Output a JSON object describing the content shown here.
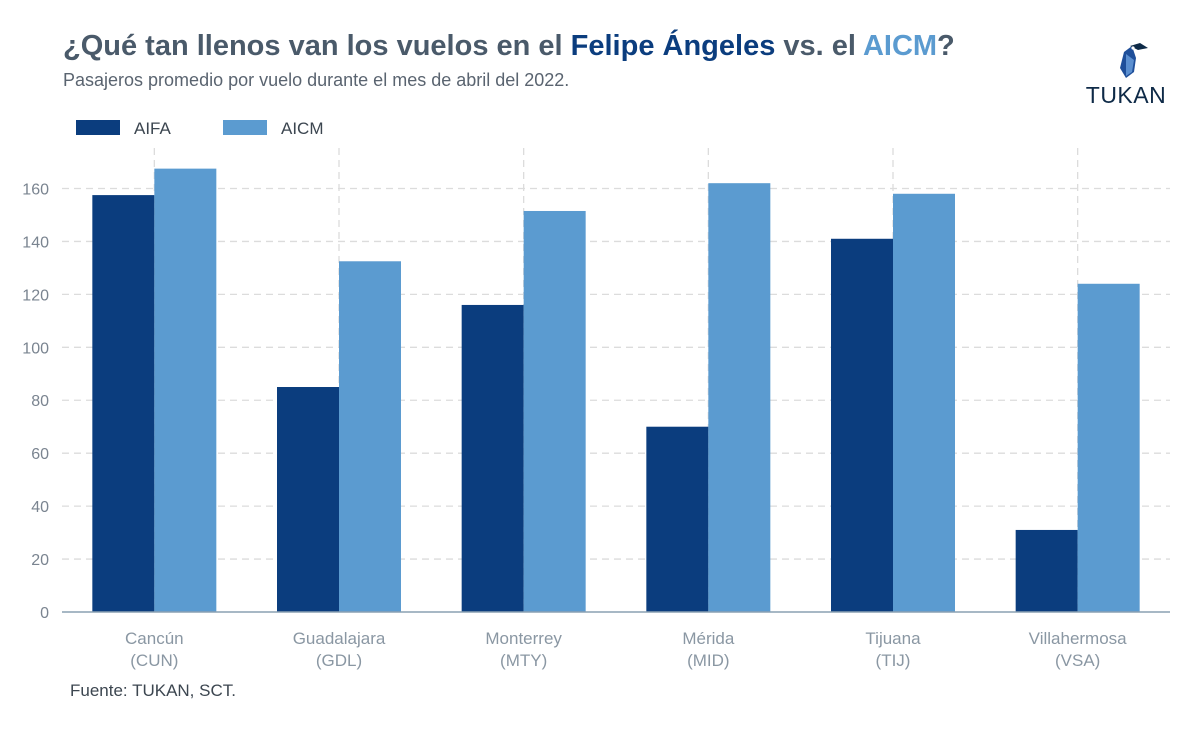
{
  "header": {
    "title_parts": [
      "¿Qué tan llenos van los vuelos en el ",
      "Felipe Ángeles",
      " vs. el ",
      "AICM",
      "?"
    ],
    "subtitle": "Pasajeros promedio por vuelo durante el mes de abril del 2022."
  },
  "logo": {
    "text": "TUKAN",
    "icon": "toucan-icon"
  },
  "footer": {
    "source": "Fuente: TUKAN, SCT."
  },
  "colors": {
    "aifa": "#0b3d7e",
    "aicm": "#5b9bd0",
    "text": "#4a5a6a"
  },
  "chart_data": {
    "type": "bar",
    "title": "¿Qué tan llenos van los vuelos en el Felipe Ángeles vs. el AICM?",
    "subtitle": "Pasajeros promedio por vuelo durante el mes de abril del 2022.",
    "xlabel": "",
    "ylabel": "",
    "categories": [
      [
        "Cancún",
        "(CUN)"
      ],
      [
        "Guadalajara",
        "(GDL)"
      ],
      [
        "Monterrey",
        "(MTY)"
      ],
      [
        "Mérida",
        "(MID)"
      ],
      [
        "Tijuana",
        "(TIJ)"
      ],
      [
        "Villahermosa",
        "(VSA)"
      ]
    ],
    "series": [
      {
        "name": "AIFA",
        "color": "#0b3d7e",
        "values": [
          157.5,
          85,
          116,
          70,
          141,
          31
        ]
      },
      {
        "name": "AICM",
        "color": "#5b9bd0",
        "values": [
          167.5,
          132.5,
          151.5,
          162,
          158,
          124
        ]
      }
    ],
    "ylim": [
      0,
      170
    ],
    "yticks": [
      0,
      20,
      40,
      60,
      80,
      100,
      120,
      140,
      160
    ],
    "grid": true,
    "legend_position": "top-left"
  }
}
